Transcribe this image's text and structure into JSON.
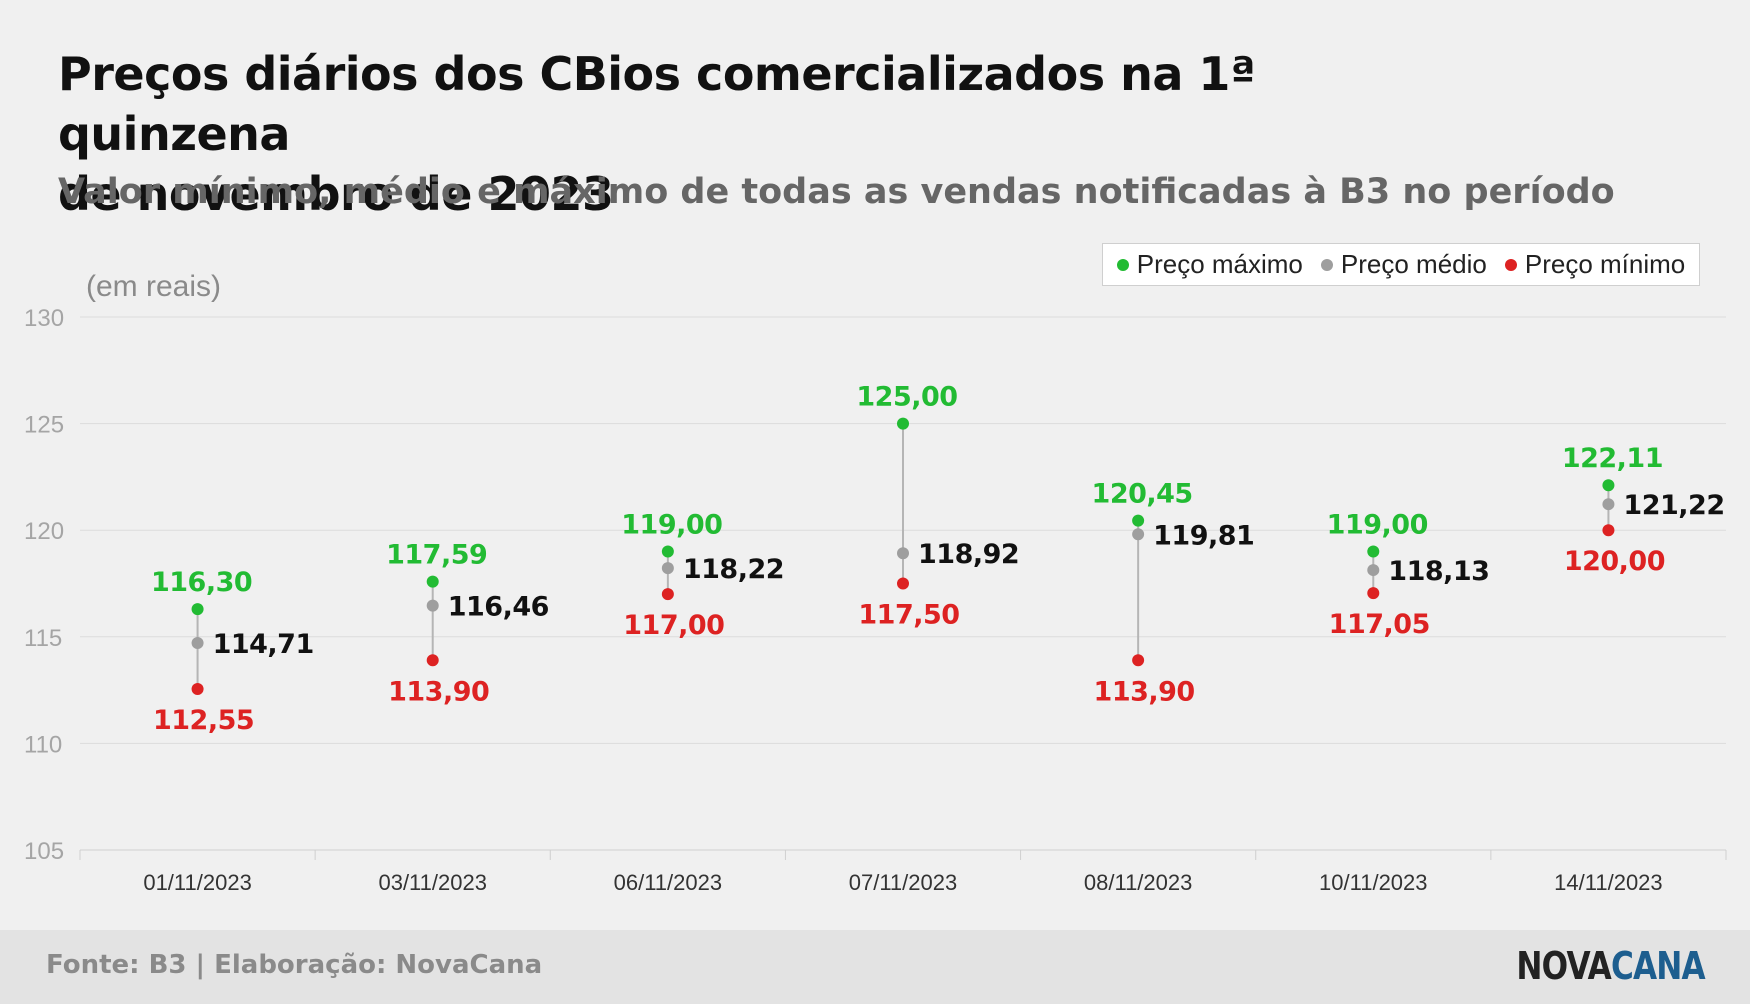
{
  "title": {
    "line1": "Preços diários dos CBios comercializados na 1ª quinzena",
    "line2": "de novembro de 2023"
  },
  "subtitle": "Valor mínimo, médio e máximo de todas as vendas notificadas à B3 no período",
  "unit_label": "(em reais)",
  "legend": {
    "max": "Preço máximo",
    "avg": "Preço médio",
    "min": "Preço mínimo"
  },
  "colors": {
    "max": "#22bb33",
    "avg": "#9e9e9e",
    "min": "#dd2222",
    "avg_label": "#111111"
  },
  "footer": {
    "source": "Fonte: B3 | Elaboração: NovaCana",
    "logo_part1": "NOVA",
    "logo_part2": "CANA",
    "logo_color1": "#222222",
    "logo_color2": "#1d5e8f"
  },
  "chart_data": {
    "type": "scatter",
    "ylim": [
      105,
      130
    ],
    "yticks": [
      105,
      110,
      115,
      120,
      125,
      130
    ],
    "grid": true,
    "legend_position": "top-right",
    "categories": [
      "01/11/2023",
      "03/11/2023",
      "06/11/2023",
      "07/11/2023",
      "08/11/2023",
      "10/11/2023",
      "14/11/2023"
    ],
    "series": [
      {
        "name": "Preço máximo",
        "values": [
          116.3,
          117.59,
          119.0,
          125.0,
          120.45,
          119.0,
          122.11
        ],
        "labels": [
          "116,30",
          "117,59",
          "119,00",
          "125,00",
          "120,45",
          "119,00",
          "122,11"
        ]
      },
      {
        "name": "Preço médio",
        "values": [
          114.71,
          116.46,
          118.22,
          118.92,
          119.81,
          118.13,
          121.22
        ],
        "labels": [
          "114,71",
          "116,46",
          "118,22",
          "118,92",
          "119,81",
          "118,13",
          "121,22"
        ]
      },
      {
        "name": "Preço mínimo",
        "values": [
          112.55,
          113.9,
          117.0,
          117.5,
          113.9,
          117.05,
          120.0
        ],
        "labels": [
          "112,55",
          "113,90",
          "117,00",
          "117,50",
          "113,90",
          "117,05",
          "120,00"
        ]
      }
    ]
  }
}
